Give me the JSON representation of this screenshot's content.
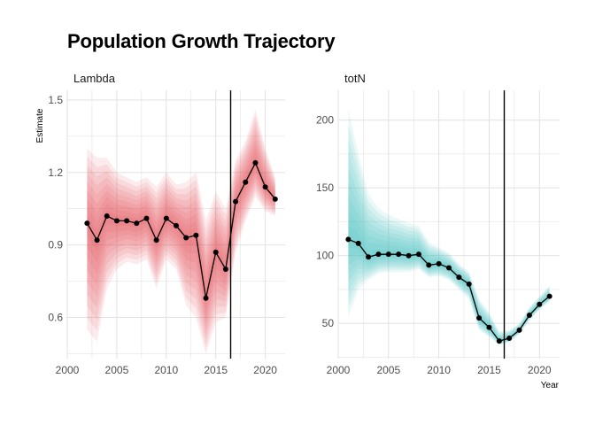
{
  "title": "Population Growth Trajectory",
  "xlabel": "Year",
  "ylabel": "Estimate",
  "chart_data": [
    {
      "type": "line",
      "facet": "Lambda",
      "color": "#e8494f",
      "x": [
        2002,
        2003,
        2004,
        2005,
        2006,
        2007,
        2008,
        2009,
        2010,
        2011,
        2012,
        2013,
        2014,
        2015,
        2016,
        2017,
        2018,
        2019,
        2020,
        2021
      ],
      "values": [
        0.99,
        0.92,
        1.02,
        1.0,
        1.0,
        0.99,
        1.01,
        0.92,
        1.01,
        0.98,
        0.93,
        0.94,
        0.68,
        0.87,
        0.8,
        1.08,
        1.16,
        1.24,
        1.14,
        1.09
      ],
      "lower": [
        0.55,
        0.5,
        0.72,
        0.8,
        0.83,
        0.82,
        0.84,
        0.72,
        0.84,
        0.8,
        0.65,
        0.6,
        0.45,
        0.58,
        0.6,
        0.87,
        1.0,
        1.1,
        1.04,
        1.02
      ],
      "upper": [
        1.3,
        1.26,
        1.26,
        1.2,
        1.18,
        1.16,
        1.18,
        1.14,
        1.2,
        1.15,
        1.16,
        1.2,
        1.0,
        1.12,
        1.05,
        1.25,
        1.33,
        1.46,
        1.3,
        1.18
      ],
      "xlim": [
        2000,
        2022
      ],
      "ylim": [
        0.43,
        1.54
      ],
      "xticks": [
        "2000",
        "2005",
        "2010",
        "2015",
        "2020"
      ],
      "yticks": [
        "0.6",
        "0.9",
        "1.2",
        "1.5"
      ],
      "vline": 2016.5,
      "grid": true
    },
    {
      "type": "line",
      "facet": "totN",
      "color": "#3fc1bf",
      "x": [
        2001,
        2002,
        2003,
        2004,
        2005,
        2006,
        2007,
        2008,
        2009,
        2010,
        2011,
        2012,
        2013,
        2014,
        2015,
        2016,
        2017,
        2018,
        2019,
        2020,
        2021
      ],
      "values": [
        112,
        109,
        99,
        101,
        101,
        101,
        100,
        101,
        93,
        94,
        91,
        84,
        79,
        54,
        47,
        37,
        39,
        45,
        56,
        64,
        70
      ],
      "lower": [
        55,
        75,
        82,
        87,
        88,
        88,
        88,
        90,
        84,
        85,
        82,
        75,
        68,
        45,
        40,
        34,
        36,
        42,
        52,
        60,
        66
      ],
      "upper": [
        208,
        175,
        145,
        135,
        130,
        127,
        124,
        122,
        110,
        106,
        102,
        94,
        88,
        68,
        58,
        44,
        45,
        50,
        62,
        70,
        78
      ],
      "xlim": [
        2000,
        2022
      ],
      "ylim": [
        24,
        222
      ],
      "xticks": [
        "2000",
        "2005",
        "2010",
        "2015",
        "2020"
      ],
      "yticks": [
        "50",
        "100",
        "150",
        "200"
      ],
      "vline": 2016.5,
      "grid": true
    }
  ]
}
